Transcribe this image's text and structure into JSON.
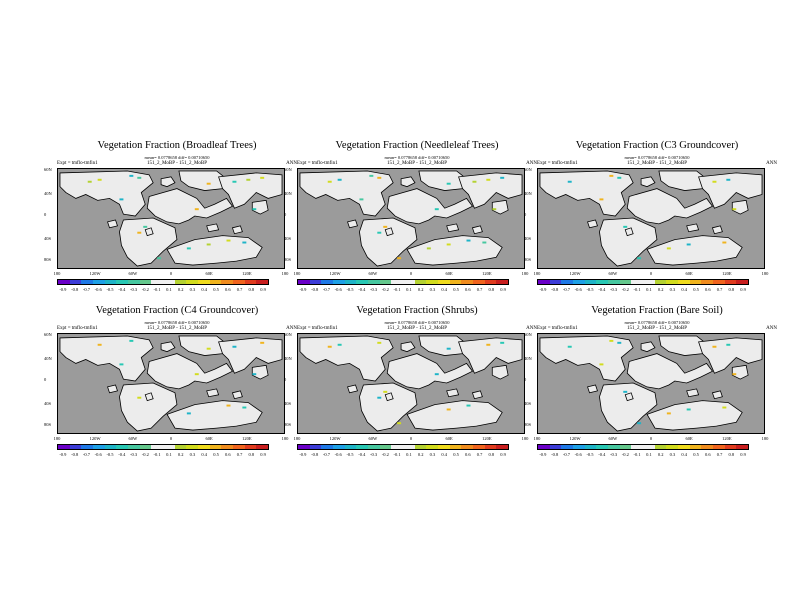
{
  "figure": {
    "colorbar": {
      "colors": [
        "#6a00c8",
        "#3c3cd8",
        "#1e78e6",
        "#1ea0e6",
        "#1eb4c8",
        "#28c8b4",
        "#46c8a0",
        "#64c88c",
        "#f0f0f0",
        "#f0f0f0",
        "#b4d232",
        "#d2dc1e",
        "#f0dc1e",
        "#f0b41e",
        "#f08c1e",
        "#f0641e",
        "#e03c1e",
        "#c81e1e"
      ],
      "tick_labels": [
        "-0.9",
        "-0.8",
        "-0.7",
        "-0.6",
        "-0.5",
        "-0.4",
        "-0.3",
        "-0.2",
        "-0.1",
        "0.1",
        "0.2",
        "0.3",
        "0.4",
        "0.5",
        "0.6",
        "0.7",
        "0.8",
        "0.9"
      ]
    },
    "colors": {
      "ocean": "#9b9b9b",
      "land": "#ececec",
      "coast": "#000000"
    },
    "lon_ticks": [
      "180",
      "120W",
      "60W",
      "0",
      "60E",
      "120E",
      "180"
    ],
    "lat_ticks": [
      "60N",
      "40N",
      "0",
      "40S",
      "80S"
    ],
    "panels": [
      {
        "title": "Vegetation Fraction (Broadleaf Trees)",
        "mean_text": "mean= 0.0778658 diff= 0.00710650",
        "expt": "Expt = tmflo-tmfin1",
        "run": "151_2_MoBP - 151_2_MoBP",
        "season": "ANN"
      },
      {
        "title": "Vegetation Fraction (Needleleaf Trees)",
        "mean_text": "mean= 0.0778658 diff= 0.00710650",
        "expt": "Expt = tmflo-tmfin1",
        "run": "151_2_MoBP - 151_2_MoBP",
        "season": "ANN"
      },
      {
        "title": "Vegetation Fraction (C3 Groundcover)",
        "mean_text": "mean= 0.0778658 diff= 0.00710650",
        "expt": "Expt = tmflo-tmfin1",
        "run": "151_2_MoBP - 151_2_MoBP",
        "season": "ANN"
      },
      {
        "title": "Vegetation Fraction (C4 Groundcover)",
        "mean_text": "mean= 0.0778658 diff= 0.00710650",
        "expt": "Expt = tmflo-tmfin1",
        "run": "151_2_MoBP - 151_2_MoBP",
        "season": "ANN"
      },
      {
        "title": "Vegetation Fraction (Shrubs)",
        "mean_text": "mean= 0.0778658 diff= 0.00710650",
        "expt": "Expt = tmflo-tmfin1",
        "run": "151_2_MoBP - 151_2_MoBP",
        "season": "ANN"
      },
      {
        "title": "Vegetation Fraction (Bare Soil)",
        "mean_text": "mean= 0.0778658 diff= 0.00710650",
        "expt": "Expt = tmflo-tmfin1",
        "run": "151_2_MoBP - 151_2_MoBP",
        "season": "ANN"
      }
    ]
  }
}
